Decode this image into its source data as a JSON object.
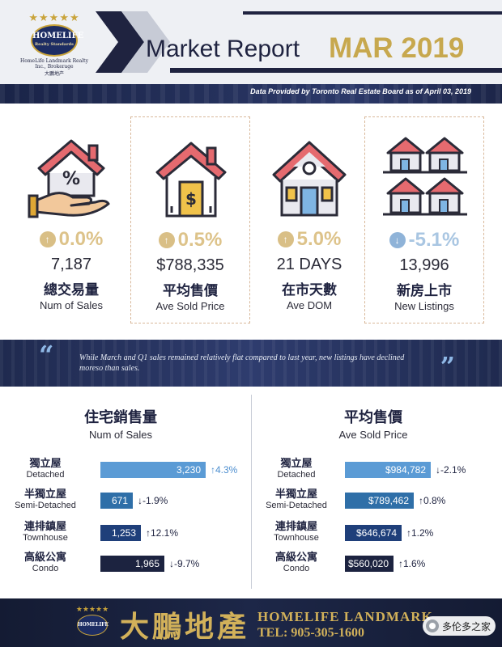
{
  "header": {
    "logo_brand": "HOMELIFE",
    "logo_sub": "Realty Standards",
    "logo_company": "HomeLife Landmark Realty Inc., Brokerage",
    "logo_zh": "大鵬地产",
    "title": "Market Report",
    "date": "MAR 2019",
    "source": "Data Provided by Toronto Real Estate Board as of April 03, 2019",
    "accent_color": "#c7a84e",
    "navy_color": "#1f2340"
  },
  "stats": [
    {
      "icon": "house-percent-hand-icon",
      "change": "0.0%",
      "direction": "up",
      "value": "7,187",
      "label_zh": "總交易量",
      "label_en": "Num of Sales"
    },
    {
      "icon": "house-dollar-icon",
      "change": "0.5%",
      "direction": "up",
      "value": "$788,335",
      "label_zh": "平均售價",
      "label_en": "Ave Sold Price"
    },
    {
      "icon": "house-door-icon",
      "change": "5.0%",
      "direction": "up",
      "value": "21 DAYS",
      "label_zh": "在市天數",
      "label_en": "Ave DOM"
    },
    {
      "icon": "houses-grid-icon",
      "change": "-5.1%",
      "direction": "down",
      "value": "13,996",
      "label_zh": "新房上市",
      "label_en": "New Listings"
    }
  ],
  "quote": {
    "text": "While March and Q1 sales remained relatively flat compared to last year, new listings have declined moreso than sales."
  },
  "sales_count": {
    "title_zh": "住宅銷售量",
    "title_en": "Num of Sales",
    "rows": [
      {
        "label_zh": "獨立屋",
        "label_en": "Detached",
        "value": 3230,
        "display": "3,230",
        "change": "4.3%",
        "direction": "up",
        "color": "#5b9bd5"
      },
      {
        "label_zh": "半獨立屋",
        "label_en": "Semi-Detached",
        "value": 671,
        "display": "671",
        "change": "-1.9%",
        "direction": "down",
        "color": "#2f6fa8"
      },
      {
        "label_zh": "連排鎮屋",
        "label_en": "Townhouse",
        "value": 1253,
        "display": "1,253",
        "change": "12.1%",
        "direction": "up",
        "color": "#1f3f7a"
      },
      {
        "label_zh": "高級公寓",
        "label_en": "Condo",
        "value": 1965,
        "display": "1,965",
        "change": "-9.7%",
        "direction": "down",
        "color": "#1c2340"
      }
    ]
  },
  "sales_price": {
    "title_zh": "平均售價",
    "title_en": "Ave Sold Price",
    "rows": [
      {
        "label_zh": "獨立屋",
        "label_en": "Detached",
        "value": 984782,
        "display": "$984,782",
        "change": "-2.1%",
        "direction": "down",
        "color": "#5b9bd5"
      },
      {
        "label_zh": "半獨立屋",
        "label_en": "Semi-Detached",
        "value": 789462,
        "display": "$789,462",
        "change": "0.8%",
        "direction": "up",
        "color": "#2f6fa8"
      },
      {
        "label_zh": "連排鎮屋",
        "label_en": "Townhouse",
        "value": 646674,
        "display": "$646,674",
        "change": "1.2%",
        "direction": "up",
        "color": "#1f3f7a"
      },
      {
        "label_zh": "高級公寓",
        "label_en": "Condo",
        "value": 560020,
        "display": "$560,020",
        "change": "1.6%",
        "direction": "up",
        "color": "#1c2340"
      }
    ]
  },
  "footer": {
    "logo_brand": "HOMELIFE",
    "brand_zh": "大鵬地產",
    "brand_en": "HOMELIFE LANDMARK",
    "tel": "TEL: 905-305-1600",
    "watermark": "多伦多之家"
  }
}
